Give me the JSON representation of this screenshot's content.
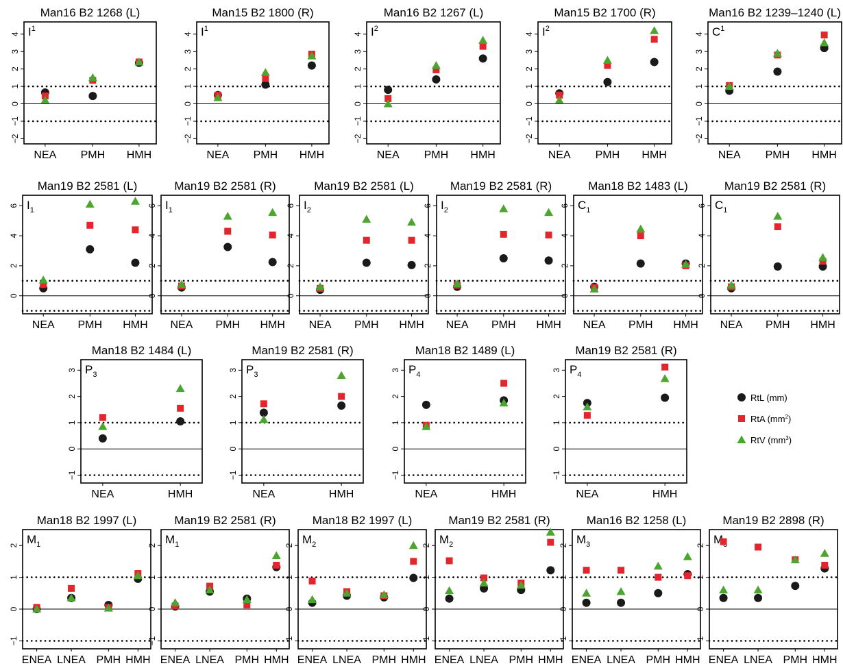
{
  "legend": {
    "items": [
      {
        "key": "RtL",
        "label": "RtL (mm)",
        "unit_sup": "",
        "color": "#1a1a1a",
        "marker": "circle"
      },
      {
        "key": "RtA",
        "label": "RtA (mm",
        "unit_sup": "2",
        "label_end": ")",
        "color": "#e3262e",
        "marker": "square"
      },
      {
        "key": "RtV",
        "label": "RtV (mm",
        "unit_sup": "3",
        "label_end": ")",
        "color": "#4ca52e",
        "marker": "triangle"
      }
    ]
  },
  "chart_data": [
    {
      "type": "scatter",
      "title": "Man16 B2 1268 (L)",
      "tooth": "I",
      "sup": "1",
      "sub": "",
      "categories": [
        "NEA",
        "PMH",
        "HMH"
      ],
      "ylim": [
        -2.3,
        4.7
      ],
      "yticks": [
        -2,
        -1,
        0,
        1,
        2,
        3,
        4
      ],
      "reference_lines": [
        1,
        -1
      ],
      "zero_line": true,
      "series": [
        {
          "name": "RtL (mm)",
          "values": [
            0.65,
            0.45,
            2.35
          ]
        },
        {
          "name": "RtA (mm2)",
          "values": [
            0.45,
            1.35,
            2.4
          ]
        },
        {
          "name": "RtV (mm3)",
          "values": [
            0.2,
            1.5,
            2.4
          ]
        }
      ]
    },
    {
      "type": "scatter",
      "title": "Man15 B2 1800 (R)",
      "tooth": "I",
      "sup": "1",
      "sub": "",
      "categories": [
        "NEA",
        "PMH",
        "HMH"
      ],
      "ylim": [
        -2.3,
        4.7
      ],
      "yticks": [
        -2,
        -1,
        0,
        1,
        2,
        3,
        4
      ],
      "reference_lines": [
        1,
        -1
      ],
      "zero_line": true,
      "series": [
        {
          "name": "RtL (mm)",
          "values": [
            0.5,
            1.1,
            2.2
          ]
        },
        {
          "name": "RtA (mm2)",
          "values": [
            0.5,
            1.45,
            2.85
          ]
        },
        {
          "name": "RtV (mm3)",
          "values": [
            0.35,
            1.8,
            2.75
          ]
        }
      ]
    },
    {
      "type": "scatter",
      "title": "Man16 B2 1267 (L)",
      "tooth": "I",
      "sup": "2",
      "sub": "",
      "categories": [
        "NEA",
        "PMH",
        "HMH"
      ],
      "ylim": [
        -2.3,
        4.7
      ],
      "yticks": [
        -2,
        -1,
        0,
        1,
        2,
        3,
        4
      ],
      "reference_lines": [
        1,
        -1
      ],
      "zero_line": true,
      "series": [
        {
          "name": "RtL (mm)",
          "values": [
            0.8,
            1.4,
            2.6
          ]
        },
        {
          "name": "RtA (mm2)",
          "values": [
            0.3,
            1.95,
            3.3
          ]
        },
        {
          "name": "RtV (mm3)",
          "values": [
            0.0,
            2.2,
            3.65
          ]
        }
      ]
    },
    {
      "type": "scatter",
      "title": "Man15 B2 1700 (R)",
      "tooth": "I",
      "sup": "2",
      "sub": "",
      "categories": [
        "NEA",
        "PMH",
        "HMH"
      ],
      "ylim": [
        -2.3,
        4.7
      ],
      "yticks": [
        -2,
        -1,
        0,
        1,
        2,
        3,
        4
      ],
      "reference_lines": [
        1,
        -1
      ],
      "zero_line": true,
      "series": [
        {
          "name": "RtL (mm)",
          "values": [
            0.6,
            1.25,
            2.4
          ]
        },
        {
          "name": "RtA (mm2)",
          "values": [
            0.5,
            2.2,
            3.7
          ]
        },
        {
          "name": "RtV (mm3)",
          "values": [
            0.2,
            2.5,
            4.2
          ]
        }
      ]
    },
    {
      "type": "scatter",
      "title": "Man16 B2 1239–1240 (L)",
      "tooth": "C",
      "sup": "1",
      "sub": "",
      "categories": [
        "NEA",
        "PMH",
        "HMH"
      ],
      "ylim": [
        -2.3,
        4.7
      ],
      "yticks": [
        -2,
        -1,
        0,
        1,
        2,
        3,
        4
      ],
      "reference_lines": [
        1,
        -1
      ],
      "zero_line": true,
      "series": [
        {
          "name": "RtL (mm)",
          "values": [
            0.75,
            1.85,
            3.2
          ]
        },
        {
          "name": "RtA (mm2)",
          "values": [
            1.05,
            2.8,
            3.95
          ]
        },
        {
          "name": "RtV (mm3)",
          "values": [
            1.0,
            2.9,
            3.5
          ]
        }
      ]
    },
    {
      "type": "scatter",
      "title": "Man19 B2 2581 (L)",
      "tooth": "I",
      "sup": "",
      "sub": "1",
      "categories": [
        "NEA",
        "PMH",
        "HMH"
      ],
      "ylim": [
        -1.2,
        6.7
      ],
      "yticks": [
        0,
        2,
        4,
        6
      ],
      "reference_lines": [
        1,
        -1
      ],
      "zero_line": true,
      "series": [
        {
          "name": "RtL (mm)",
          "values": [
            0.5,
            3.1,
            2.2
          ]
        },
        {
          "name": "RtA (mm2)",
          "values": [
            0.75,
            4.7,
            4.4
          ]
        },
        {
          "name": "RtV (mm3)",
          "values": [
            1.05,
            6.1,
            6.3
          ]
        }
      ]
    },
    {
      "type": "scatter",
      "title": "Man19 B2 2581 (R)",
      "tooth": "I",
      "sup": "",
      "sub": "1",
      "categories": [
        "NEA",
        "PMH",
        "HMH"
      ],
      "ylim": [
        -1.2,
        6.7
      ],
      "yticks": [
        0,
        2,
        4,
        6
      ],
      "reference_lines": [
        1,
        -1
      ],
      "zero_line": true,
      "series": [
        {
          "name": "RtL (mm)",
          "values": [
            0.55,
            3.25,
            2.25
          ]
        },
        {
          "name": "RtA (mm2)",
          "values": [
            0.65,
            4.3,
            4.05
          ]
        },
        {
          "name": "RtV (mm3)",
          "values": [
            0.75,
            5.3,
            5.55
          ]
        }
      ]
    },
    {
      "type": "scatter",
      "title": "Man19 B2 2581 (L)",
      "tooth": "I",
      "sup": "",
      "sub": "2",
      "categories": [
        "NEA",
        "PMH",
        "HMH"
      ],
      "ylim": [
        -1.2,
        6.7
      ],
      "yticks": [
        0,
        2,
        4,
        6
      ],
      "reference_lines": [
        1,
        -1
      ],
      "zero_line": true,
      "series": [
        {
          "name": "RtL (mm)",
          "values": [
            0.4,
            2.2,
            2.05
          ]
        },
        {
          "name": "RtA (mm2)",
          "values": [
            0.5,
            3.7,
            3.7
          ]
        },
        {
          "name": "RtV (mm3)",
          "values": [
            0.6,
            5.1,
            4.9
          ]
        }
      ]
    },
    {
      "type": "scatter",
      "title": "Man19 B2 2581 (R)",
      "tooth": "I",
      "sup": "",
      "sub": "2",
      "categories": [
        "NEA",
        "PMH",
        "HMH"
      ],
      "ylim": [
        -1.2,
        6.7
      ],
      "yticks": [
        0,
        2,
        4,
        6
      ],
      "reference_lines": [
        1,
        -1
      ],
      "zero_line": true,
      "series": [
        {
          "name": "RtL (mm)",
          "values": [
            0.6,
            2.5,
            2.35
          ]
        },
        {
          "name": "RtA (mm2)",
          "values": [
            0.7,
            4.1,
            4.05
          ]
        },
        {
          "name": "RtV (mm3)",
          "values": [
            0.8,
            5.8,
            5.55
          ]
        }
      ]
    },
    {
      "type": "scatter",
      "title": "Man18 B2 1483 (L)",
      "tooth": "C",
      "sup": "",
      "sub": "1",
      "categories": [
        "NEA",
        "PMH",
        "HMH"
      ],
      "ylim": [
        -1.2,
        6.7
      ],
      "yticks": [
        0,
        2,
        4,
        6
      ],
      "reference_lines": [
        1,
        -1
      ],
      "zero_line": true,
      "series": [
        {
          "name": "RtL (mm)",
          "values": [
            0.6,
            2.15,
            2.15
          ]
        },
        {
          "name": "RtA (mm2)",
          "values": [
            0.55,
            4.0,
            2.0
          ]
        },
        {
          "name": "RtV (mm3)",
          "values": [
            0.45,
            4.45,
            2.1
          ]
        }
      ]
    },
    {
      "type": "scatter",
      "title": "Man19 B2 2581 (R)",
      "tooth": "C",
      "sup": "",
      "sub": "1",
      "categories": [
        "NEA",
        "PMH",
        "HMH"
      ],
      "ylim": [
        -1.2,
        6.7
      ],
      "yticks": [
        0,
        2,
        4,
        6
      ],
      "reference_lines": [
        1,
        -1
      ],
      "zero_line": true,
      "series": [
        {
          "name": "RtL (mm)",
          "values": [
            0.5,
            1.95,
            1.95
          ]
        },
        {
          "name": "RtA (mm2)",
          "values": [
            0.6,
            4.6,
            2.3
          ]
        },
        {
          "name": "RtV (mm3)",
          "values": [
            0.7,
            5.3,
            2.55
          ]
        }
      ]
    },
    {
      "type": "scatter",
      "title": "Man18 B2 1484 (L)",
      "tooth": "P",
      "sup": "",
      "sub": "3",
      "categories": [
        "NEA",
        "HMH"
      ],
      "ylim": [
        -1.3,
        3.4
      ],
      "yticks": [
        -1,
        0,
        1,
        2,
        3
      ],
      "reference_lines": [
        1,
        -1
      ],
      "zero_line": true,
      "series": [
        {
          "name": "RtL (mm)",
          "values": [
            0.4,
            1.05
          ]
        },
        {
          "name": "RtA (mm2)",
          "values": [
            1.2,
            1.55
          ]
        },
        {
          "name": "RtV (mm3)",
          "values": [
            0.85,
            2.3
          ]
        }
      ]
    },
    {
      "type": "scatter",
      "title": "Man19 B2 2581 (R)",
      "tooth": "P",
      "sup": "",
      "sub": "3",
      "categories": [
        "NEA",
        "HMH"
      ],
      "ylim": [
        -1.3,
        3.4
      ],
      "yticks": [
        -1,
        0,
        1,
        2,
        3
      ],
      "reference_lines": [
        1,
        -1
      ],
      "zero_line": true,
      "series": [
        {
          "name": "RtL (mm)",
          "values": [
            1.38,
            1.65
          ]
        },
        {
          "name": "RtA (mm2)",
          "values": [
            1.72,
            2.0
          ]
        },
        {
          "name": "RtV (mm3)",
          "values": [
            1.12,
            2.8
          ]
        }
      ]
    },
    {
      "type": "scatter",
      "title": "Man18 B2 1489 (L)",
      "tooth": "P",
      "sup": "",
      "sub": "4",
      "categories": [
        "NEA",
        "HMH"
      ],
      "ylim": [
        -1.3,
        3.4
      ],
      "yticks": [
        -1,
        0,
        1,
        2,
        3
      ],
      "reference_lines": [
        1,
        -1
      ],
      "zero_line": true,
      "series": [
        {
          "name": "RtL (mm)",
          "values": [
            1.68,
            1.85
          ]
        },
        {
          "name": "RtA (mm2)",
          "values": [
            0.9,
            2.5
          ]
        },
        {
          "name": "RtV (mm3)",
          "values": [
            0.85,
            1.75
          ]
        }
      ]
    },
    {
      "type": "scatter",
      "title": "Man19 B2 2581 (R)",
      "tooth": "P",
      "sup": "",
      "sub": "4",
      "categories": [
        "NEA",
        "HMH"
      ],
      "ylim": [
        -1.3,
        3.4
      ],
      "yticks": [
        -1,
        0,
        1,
        2,
        3
      ],
      "reference_lines": [
        1,
        -1
      ],
      "zero_line": true,
      "series": [
        {
          "name": "RtL (mm)",
          "values": [
            1.75,
            1.95
          ]
        },
        {
          "name": "RtA (mm2)",
          "values": [
            1.28,
            3.12
          ]
        },
        {
          "name": "RtV (mm3)",
          "values": [
            1.6,
            2.68
          ]
        }
      ]
    },
    {
      "type": "scatter",
      "title": "Man18 B2 1997 (L)",
      "tooth": "M",
      "sup": "",
      "sub": "1",
      "categories": [
        "ENEA",
        "LNEA",
        "PMH",
        "HMH"
      ],
      "ylim": [
        -1.25,
        2.5
      ],
      "yticks": [
        -1,
        0,
        1,
        2
      ],
      "reference_lines": [
        1,
        -1
      ],
      "zero_line": true,
      "series": [
        {
          "name": "RtL (mm)",
          "values": [
            0.0,
            0.35,
            0.13,
            0.95
          ]
        },
        {
          "name": "RtA (mm2)",
          "values": [
            0.05,
            0.65,
            0.05,
            1.12
          ]
        },
        {
          "name": "RtV (mm3)",
          "values": [
            0.0,
            0.35,
            0.03,
            1.05
          ]
        }
      ]
    },
    {
      "type": "scatter",
      "title": "Man19 B2 2581 (R)",
      "tooth": "M",
      "sup": "",
      "sub": "1",
      "categories": [
        "ENEA",
        "LNEA",
        "PMH",
        "HMH"
      ],
      "ylim": [
        -1.25,
        2.5
      ],
      "yticks": [
        -1,
        0,
        1,
        2
      ],
      "reference_lines": [
        1,
        -1
      ],
      "zero_line": true,
      "series": [
        {
          "name": "RtL (mm)",
          "values": [
            0.08,
            0.55,
            0.33,
            1.32
          ]
        },
        {
          "name": "RtA (mm2)",
          "values": [
            0.1,
            0.72,
            0.13,
            1.38
          ]
        },
        {
          "name": "RtV (mm3)",
          "values": [
            0.2,
            0.6,
            0.3,
            1.68
          ]
        }
      ]
    },
    {
      "type": "scatter",
      "title": "Man18 B2 1997 (L)",
      "tooth": "M",
      "sup": "",
      "sub": "2",
      "categories": [
        "ENEA",
        "LNEA",
        "PMH",
        "HMH"
      ],
      "ylim": [
        -1.25,
        2.5
      ],
      "yticks": [
        -1,
        0,
        1,
        2
      ],
      "reference_lines": [
        1,
        -1
      ],
      "zero_line": true,
      "series": [
        {
          "name": "RtL (mm)",
          "values": [
            0.2,
            0.42,
            0.37,
            0.98
          ]
        },
        {
          "name": "RtA (mm2)",
          "values": [
            0.88,
            0.55,
            0.42,
            1.5
          ]
        },
        {
          "name": "RtV (mm3)",
          "values": [
            0.3,
            0.5,
            0.45,
            2.0
          ]
        }
      ]
    },
    {
      "type": "scatter",
      "title": "Man19 B2 2581 (R)",
      "tooth": "M",
      "sup": "",
      "sub": "2",
      "categories": [
        "ENEA",
        "LNEA",
        "PMH",
        "HMH"
      ],
      "ylim": [
        -1.25,
        2.5
      ],
      "yticks": [
        -1,
        0,
        1,
        2
      ],
      "reference_lines": [
        1,
        -1
      ],
      "zero_line": true,
      "series": [
        {
          "name": "RtL (mm)",
          "values": [
            0.33,
            0.65,
            0.6,
            1.22
          ]
        },
        {
          "name": "RtA (mm2)",
          "values": [
            1.52,
            0.98,
            0.82,
            2.1
          ]
        },
        {
          "name": "RtV (mm3)",
          "values": [
            0.58,
            0.82,
            0.75,
            2.42
          ]
        }
      ]
    },
    {
      "type": "scatter",
      "title": "Man16 B2 1258 (L)",
      "tooth": "M",
      "sup": "",
      "sub": "3",
      "categories": [
        "ENEA",
        "LNEA",
        "PMH",
        "HMH"
      ],
      "ylim": [
        -1.25,
        2.5
      ],
      "yticks": [
        -1,
        0,
        1,
        2
      ],
      "reference_lines": [
        1,
        -1
      ],
      "zero_line": true,
      "series": [
        {
          "name": "RtL (mm)",
          "values": [
            0.2,
            0.2,
            0.5,
            1.1
          ]
        },
        {
          "name": "RtA (mm2)",
          "values": [
            1.22,
            1.22,
            1.0,
            1.05
          ]
        },
        {
          "name": "RtV (mm3)",
          "values": [
            0.5,
            0.55,
            1.35,
            1.65
          ]
        }
      ]
    },
    {
      "type": "scatter",
      "title": "Man19 B2 2898 (R)",
      "tooth": "M",
      "sup": "",
      "sub": "3",
      "categories": [
        "ENEA",
        "LNEA",
        "PMH",
        "HMH"
      ],
      "ylim": [
        -1.25,
        2.5
      ],
      "yticks": [
        -1,
        0,
        1,
        2
      ],
      "reference_lines": [
        1,
        -1
      ],
      "zero_line": true,
      "series": [
        {
          "name": "RtL (mm)",
          "values": [
            0.35,
            0.35,
            0.73,
            1.28
          ]
        },
        {
          "name": "RtA (mm2)",
          "values": [
            2.12,
            1.95,
            1.55,
            1.38
          ]
        },
        {
          "name": "RtV (mm3)",
          "values": [
            0.6,
            0.6,
            1.55,
            1.75
          ]
        }
      ]
    }
  ]
}
